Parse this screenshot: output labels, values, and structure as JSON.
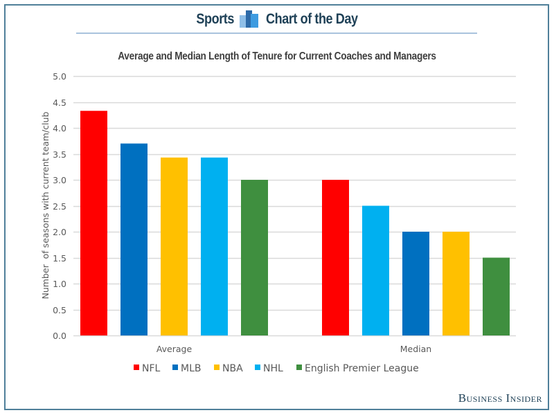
{
  "header": {
    "left_text": "Sports",
    "right_text": "Chart of the Day",
    "icon": "bar-chart-icon",
    "icon_colors": [
      "#8fbfe8",
      "#2d6aa8",
      "#3e9be0"
    ],
    "accent": "#1f4157"
  },
  "brand": "Business Insider",
  "chart_data": {
    "type": "bar",
    "title": "Average and Median Length of Tenure for Current Coaches and Managers",
    "xlabel": "",
    "ylabel": "Number  of seasons with current team/club",
    "ylim": [
      0,
      5
    ],
    "yticks": [
      "0.0",
      "0.5",
      "1.0",
      "1.5",
      "2.0",
      "2.5",
      "3.0",
      "3.5",
      "4.0",
      "4.5",
      "5.0"
    ],
    "ytick_values": [
      0,
      0.5,
      1,
      1.5,
      2,
      2.5,
      3,
      3.5,
      4,
      4.5,
      5
    ],
    "grid": true,
    "legend_position": "bottom",
    "legend": [
      {
        "name": "NFL",
        "color": "#ff0000"
      },
      {
        "name": "MLB",
        "color": "#0070c0"
      },
      {
        "name": "NBA",
        "color": "#ffc000"
      },
      {
        "name": "NHL",
        "color": "#00b0f0"
      },
      {
        "name": "English Premier League",
        "color": "#3f8f3f"
      }
    ],
    "groups": [
      {
        "label": "Average",
        "bars": [
          {
            "series": "NFL",
            "value": 4.33,
            "color": "#ff0000"
          },
          {
            "series": "MLB",
            "value": 3.7,
            "color": "#0070c0"
          },
          {
            "series": "NBA",
            "value": 3.43,
            "color": "#ffc000"
          },
          {
            "series": "NHL",
            "value": 3.43,
            "color": "#00b0f0"
          },
          {
            "series": "English Premier League",
            "value": 3.0,
            "color": "#3f8f3f"
          }
        ]
      },
      {
        "label": "Median",
        "bars": [
          {
            "series": "NFL",
            "value": 3.0,
            "color": "#ff0000"
          },
          {
            "series": "NHL",
            "value": 2.5,
            "color": "#00b0f0"
          },
          {
            "series": "MLB",
            "value": 2.0,
            "color": "#0070c0"
          },
          {
            "series": "NBA",
            "value": 2.0,
            "color": "#ffc000"
          },
          {
            "series": "English Premier League",
            "value": 1.5,
            "color": "#3f8f3f"
          }
        ]
      }
    ]
  }
}
